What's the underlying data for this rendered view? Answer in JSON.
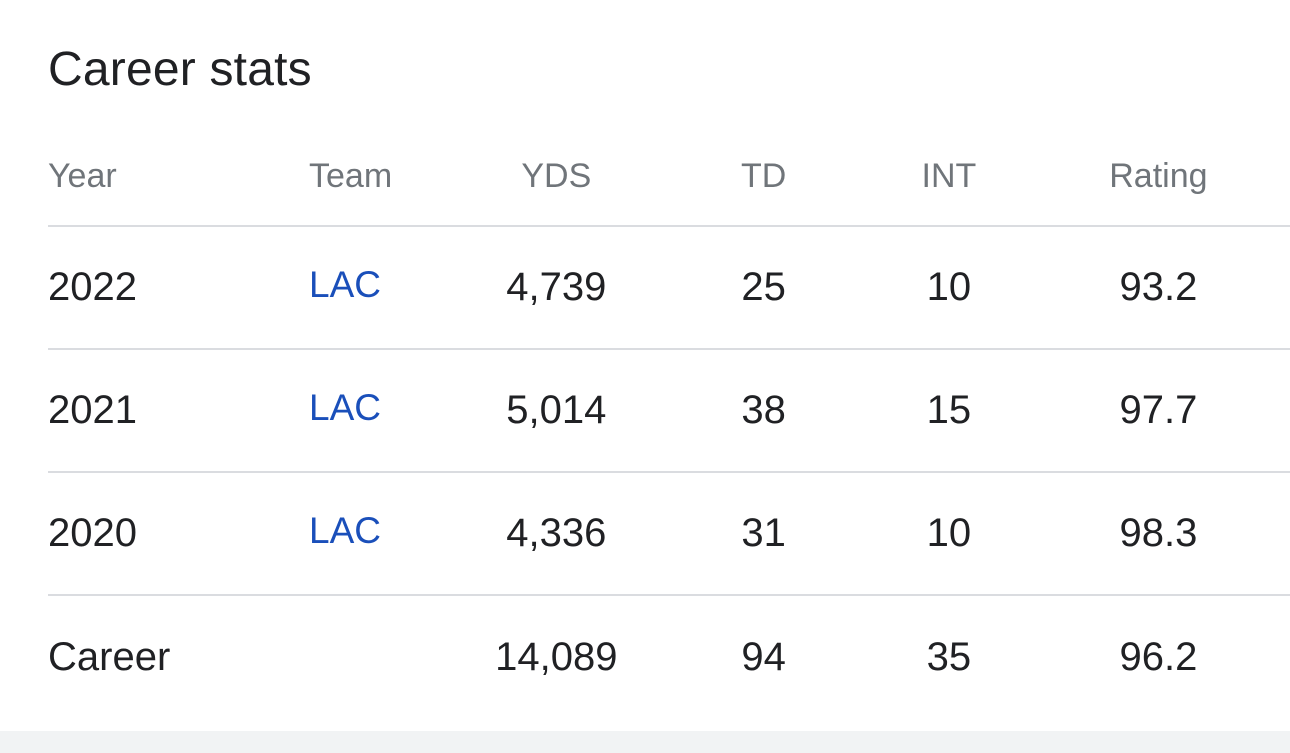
{
  "title": "Career stats",
  "columns": {
    "year": "Year",
    "team": "Team",
    "yds": "YDS",
    "td": "TD",
    "int": "INT",
    "rating": "Rating"
  },
  "rows": [
    {
      "year": "2022",
      "team": "LAC",
      "yds": "4,739",
      "td": "25",
      "int": "10",
      "rating": "93.2"
    },
    {
      "year": "2021",
      "team": "LAC",
      "yds": "5,014",
      "td": "38",
      "int": "15",
      "rating": "97.7"
    },
    {
      "year": "2020",
      "team": "LAC",
      "yds": "4,336",
      "td": "31",
      "int": "10",
      "rating": "98.3"
    }
  ],
  "career": {
    "label": "Career",
    "yds": "14,089",
    "td": "94",
    "int": "35",
    "rating": "96.2"
  },
  "colors": {
    "link": "#1a4fba",
    "header_text": "#70757a",
    "divider": "#dadce0"
  }
}
